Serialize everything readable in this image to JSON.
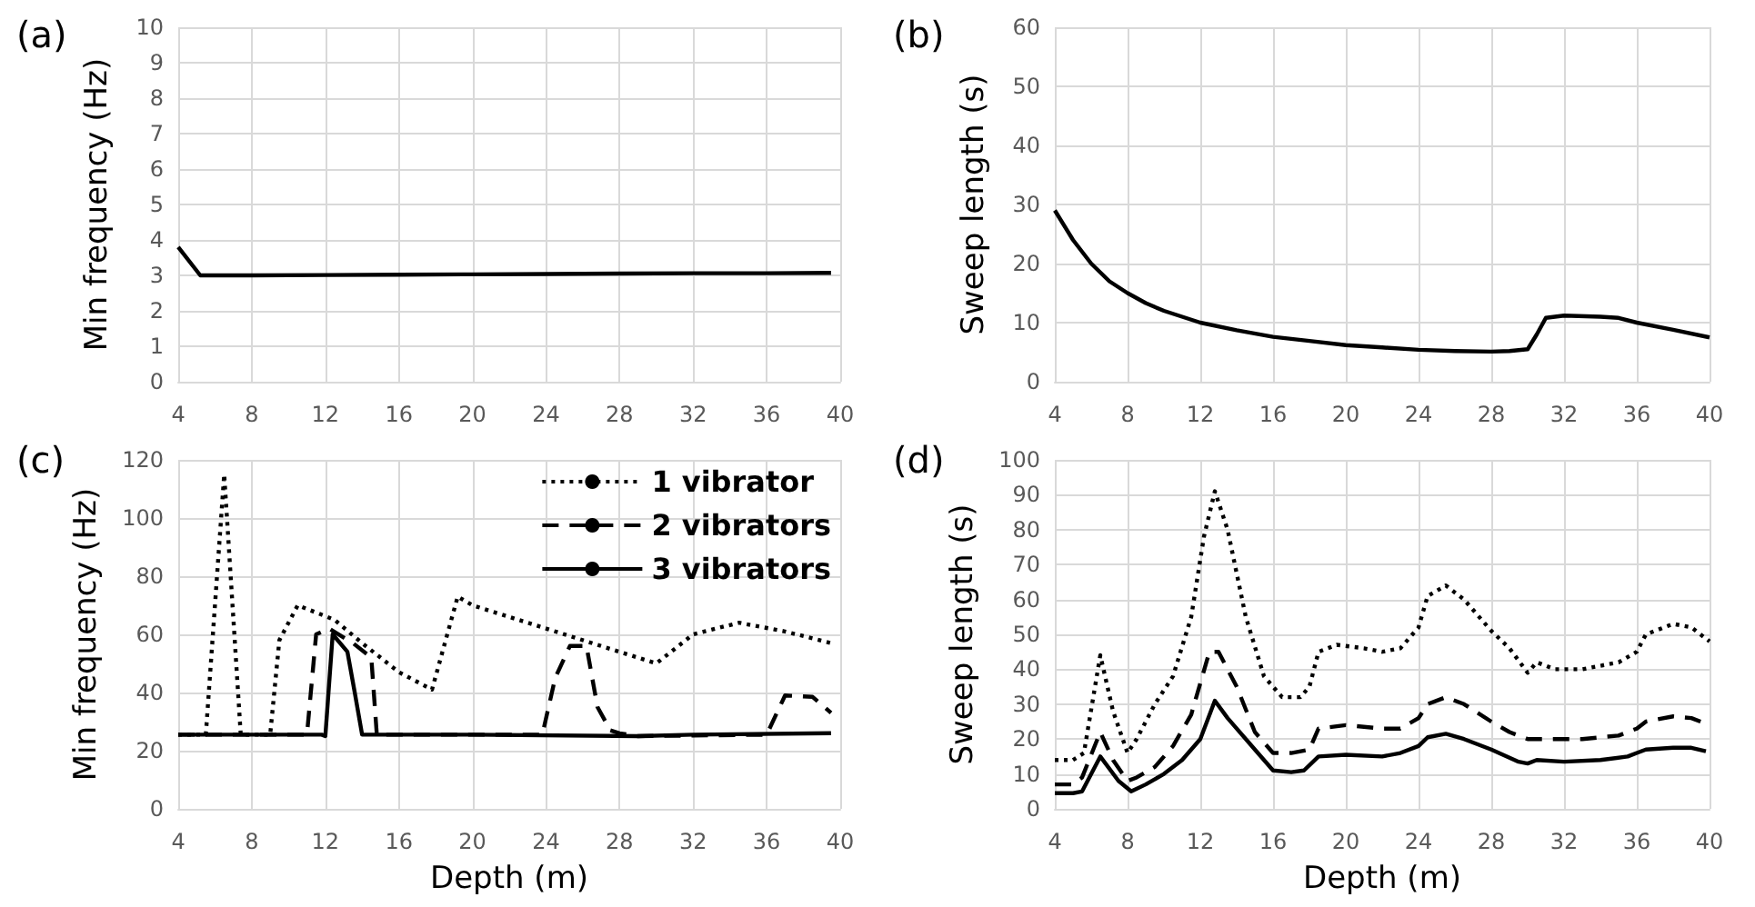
{
  "chart_data": [
    {
      "type": "line",
      "title": "(a)",
      "ylabel": "Min frequency (Hz)",
      "xlim": [
        4,
        40
      ],
      "xticks": [
        4,
        8,
        12,
        16,
        20,
        24,
        28,
        32,
        36,
        40
      ],
      "ylim": [
        0,
        10
      ],
      "yticks": [
        0,
        1,
        2,
        3,
        4,
        5,
        6,
        7,
        8,
        9,
        10
      ],
      "grid": true,
      "line_style": "solid",
      "color": "#000000",
      "x": [
        4,
        5.2,
        8,
        12,
        16,
        20,
        24,
        28,
        32,
        36,
        39.5
      ],
      "values": [
        3.8,
        3.0,
        3.0,
        3.01,
        3.02,
        3.03,
        3.04,
        3.05,
        3.06,
        3.06,
        3.07
      ]
    },
    {
      "type": "line",
      "title": "(b)",
      "ylabel": "Sweep length (s)",
      "xlim": [
        4,
        40
      ],
      "xticks": [
        4,
        8,
        12,
        16,
        20,
        24,
        28,
        32,
        36,
        40
      ],
      "ylim": [
        0,
        60
      ],
      "yticks": [
        0,
        10,
        20,
        30,
        40,
        50,
        60
      ],
      "grid": true,
      "line_style": "solid",
      "color": "#000000",
      "x": [
        4,
        5,
        6,
        7,
        8,
        9,
        10,
        12,
        14,
        16,
        18,
        20,
        22,
        24,
        26,
        28,
        29,
        30,
        30.5,
        31,
        32,
        34,
        35,
        36,
        38,
        40
      ],
      "values": [
        29,
        24,
        20,
        17,
        15,
        13.3,
        12,
        10,
        8.7,
        7.6,
        6.9,
        6.2,
        5.8,
        5.4,
        5.2,
        5.1,
        5.2,
        5.5,
        8,
        10.8,
        11.2,
        11,
        10.8,
        10,
        8.8,
        7.5
      ]
    },
    {
      "type": "line",
      "title": "(c)",
      "xlabel": "Depth (m)",
      "ylabel": "Min frequency (Hz)",
      "xlim": [
        4,
        40
      ],
      "xticks": [
        4,
        8,
        12,
        16,
        20,
        24,
        28,
        32,
        36,
        40
      ],
      "ylim": [
        0,
        120
      ],
      "yticks": [
        0,
        20,
        40,
        60,
        80,
        100,
        120
      ],
      "grid": true,
      "legend": "top right",
      "series": [
        {
          "name": "1 vibrator",
          "color": "#000000",
          "line_style": "dotted",
          "x": [
            4,
            5.5,
            6.5,
            7.4,
            9,
            9.5,
            10.5,
            12.5,
            14,
            16,
            17.8,
            19.2,
            20,
            22,
            24,
            26,
            28,
            30,
            32,
            34.5,
            37,
            39.5
          ],
          "values": [
            25.5,
            25.5,
            115,
            25.5,
            25.5,
            58,
            70,
            65,
            57,
            47,
            41,
            73,
            70,
            66,
            62,
            58,
            54,
            50,
            60,
            64,
            61,
            57
          ]
        },
        {
          "name": "2 vibrators",
          "color": "#000000",
          "line_style": "dashed",
          "x": [
            4,
            11,
            11.5,
            12.2,
            13.5,
            14.5,
            14.8,
            23.8,
            24.5,
            25.3,
            26.2,
            26.8,
            27.5,
            28,
            29,
            36,
            37,
            38.5,
            39.5
          ],
          "values": [
            25.5,
            25.5,
            60,
            62,
            57,
            52,
            25.5,
            25.5,
            45,
            56,
            56,
            35,
            27,
            26,
            25,
            25.5,
            39,
            38.5,
            33
          ]
        },
        {
          "name": "3 vibrators",
          "color": "#000000",
          "line_style": "solid",
          "x": [
            4,
            11.8,
            12,
            12.4,
            13.2,
            13.6,
            14,
            20,
            29,
            32,
            39.5
          ],
          "values": [
            25.5,
            25.5,
            25,
            60,
            54,
            40,
            25.5,
            25.5,
            25,
            25.5,
            26
          ]
        }
      ]
    },
    {
      "type": "line",
      "title": "(d)",
      "xlabel": "Depth (m)",
      "ylabel": "Sweep length (s)",
      "xlim": [
        4,
        40
      ],
      "xticks": [
        4,
        8,
        12,
        16,
        20,
        24,
        28,
        32,
        36,
        40
      ],
      "ylim": [
        0,
        100
      ],
      "yticks": [
        0,
        10,
        20,
        30,
        40,
        50,
        60,
        70,
        80,
        90,
        100
      ],
      "grid": true,
      "series": [
        {
          "color": "#000000",
          "line_style": "dotted",
          "x": [
            4,
            5,
            5.6,
            6.5,
            7.2,
            8,
            8.5,
            9.5,
            10.5,
            11.5,
            12.2,
            12.8,
            13.5,
            14.5,
            15.5,
            16.5,
            17.5,
            18,
            18.5,
            19.5,
            21,
            22,
            23,
            24,
            24.5,
            25.5,
            26.5,
            28,
            29,
            30,
            30.5,
            31.5,
            33,
            35,
            36,
            36.5,
            38,
            39,
            40
          ],
          "values": [
            14,
            14,
            16,
            44,
            28,
            16,
            20,
            30,
            38,
            55,
            78,
            91,
            80,
            55,
            38,
            32,
            32,
            35,
            45,
            47,
            46,
            45,
            46,
            52,
            61,
            64,
            60,
            51,
            46,
            39,
            42,
            40,
            40,
            42,
            45,
            50,
            53,
            52,
            48
          ]
        },
        {
          "color": "#000000",
          "line_style": "dashed",
          "x": [
            4,
            5,
            5.5,
            6.5,
            7.2,
            8,
            8.5,
            9.5,
            10.5,
            11.5,
            12.5,
            13,
            14,
            15,
            16,
            17,
            18,
            18.5,
            20,
            22,
            23,
            24,
            24.5,
            25.5,
            26.5,
            28,
            29,
            30,
            31,
            33,
            35,
            36,
            36.5,
            38,
            39,
            40
          ],
          "values": [
            7,
            7,
            9,
            22,
            14,
            8,
            9,
            12,
            18,
            27,
            45,
            45,
            35,
            22,
            16,
            16,
            17,
            23,
            24,
            23,
            23,
            26,
            30,
            32,
            30,
            25,
            22,
            20,
            20,
            20,
            21,
            23,
            25,
            26.5,
            26,
            24
          ]
        },
        {
          "color": "#000000",
          "line_style": "solid",
          "x": [
            4,
            5,
            5.5,
            6.5,
            7.5,
            8.2,
            9,
            10,
            11,
            12,
            12.8,
            13.5,
            15,
            16,
            17,
            17.7,
            18.5,
            20,
            22,
            23,
            24,
            24.5,
            25.5,
            26.5,
            28,
            29.5,
            30,
            30.5,
            32,
            34,
            35.5,
            36,
            36.5,
            38,
            39,
            39.8
          ],
          "values": [
            4.5,
            4.5,
            5,
            15,
            8,
            5,
            7,
            10,
            14,
            20,
            31,
            26,
            17,
            11,
            10.5,
            11,
            15,
            15.5,
            15,
            16,
            18,
            20.5,
            21.5,
            20,
            17,
            13.5,
            13,
            14,
            13.5,
            14,
            15,
            16,
            17,
            17.5,
            17.5,
            16.5
          ]
        }
      ]
    }
  ]
}
